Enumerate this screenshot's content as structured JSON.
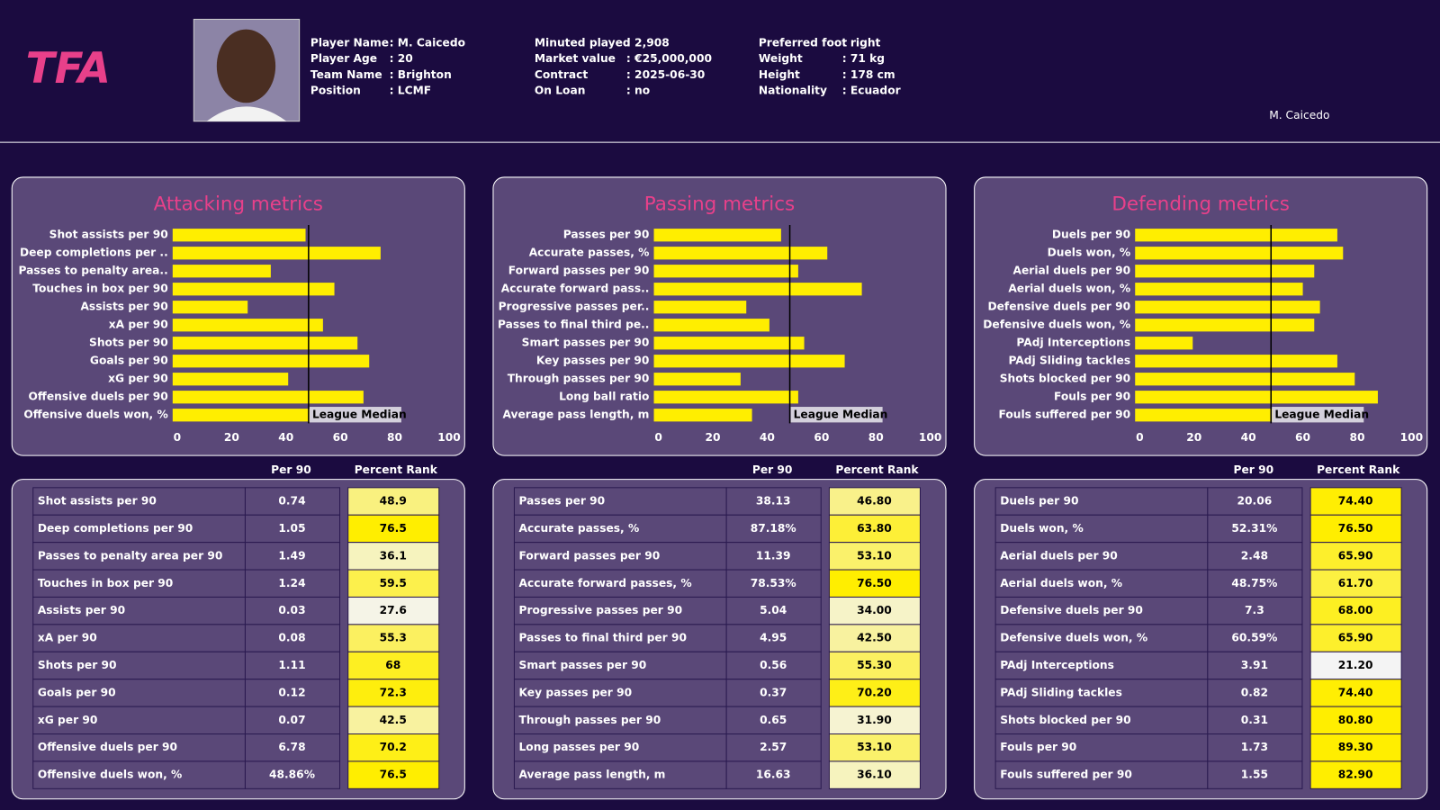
{
  "header": {
    "logo": "TFA",
    "caption": "M. Caicedo",
    "columns": [
      [
        {
          "label": "Player Name",
          "value": ": M. Caicedo"
        },
        {
          "label": "Player Age",
          "value": ": 20"
        },
        {
          "label": "Team Name",
          "value": ": Brighton"
        },
        {
          "label": "Position",
          "value": ": LCMF"
        }
      ],
      [
        {
          "label": "Minuted played",
          "value": ": 2,908"
        },
        {
          "label": "Market value",
          "value": ": €25,000,000"
        },
        {
          "label": "Contract",
          "value": ": 2025-06-30"
        },
        {
          "label": "On Loan",
          "value": ": no"
        }
      ],
      [
        {
          "label": "Preferred foot",
          "value": ": right"
        },
        {
          "label": "Weight",
          "value": ": 71 kg"
        },
        {
          "label": "Height",
          "value": ": 178 cm"
        },
        {
          "label": "Nationality",
          "value": ": Ecuador"
        }
      ]
    ]
  },
  "chart_data": [
    {
      "type": "barh",
      "title": "Attacking metrics",
      "color": "#ffee00",
      "xlim": [
        0,
        100
      ],
      "xticks": [
        0,
        20,
        40,
        60,
        80,
        100
      ],
      "median": {
        "value": 50,
        "label": "League Median"
      },
      "categories": [
        "Shot assists per 90",
        "Deep completions per ..",
        "Passes to penalty area..",
        "Touches in box per 90",
        "Assists per 90",
        "xA per 90",
        "Shots per 90",
        "Goals per 90",
        "xG per 90",
        "Offensive duels per 90",
        "Offensive duels won, %"
      ],
      "values": [
        48.9,
        76.5,
        36.1,
        59.5,
        27.6,
        55.3,
        68,
        72.3,
        42.5,
        70.2,
        76.5
      ]
    },
    {
      "type": "barh",
      "title": "Passing metrics",
      "color": "#ffee00",
      "xlim": [
        0,
        100
      ],
      "xticks": [
        0,
        20,
        40,
        60,
        80,
        100
      ],
      "median": {
        "value": 50,
        "label": "League Median"
      },
      "categories": [
        "Passes per 90",
        "Accurate passes, %",
        "Forward passes per 90",
        "Accurate forward pass..",
        "Progressive passes per..",
        "Passes to final third pe..",
        "Smart passes per 90",
        "Key passes per 90",
        "Through passes per 90",
        "Long ball ratio",
        "Average pass length, m"
      ],
      "values": [
        46.8,
        63.8,
        53.1,
        76.5,
        34,
        42.5,
        55.3,
        70.2,
        31.9,
        53.1,
        36.1
      ]
    },
    {
      "type": "barh",
      "title": "Defending metrics",
      "color": "#ffee00",
      "xlim": [
        0,
        100
      ],
      "xticks": [
        0,
        20,
        40,
        60,
        80,
        100
      ],
      "median": {
        "value": 50,
        "label": "League Median"
      },
      "categories": [
        "Duels per 90",
        "Duels won, %",
        "Aerial duels per 90",
        "Aerial duels won, %",
        "Defensive duels per 90",
        "Defensive duels won, %",
        "PAdj Interceptions",
        "PAdj Sliding tackles",
        "Shots blocked per 90",
        "Fouls per 90",
        "Fouls suffered per 90"
      ],
      "values": [
        74.4,
        76.5,
        65.9,
        61.7,
        68,
        65.9,
        21.2,
        74.4,
        80.8,
        89.3,
        82.9
      ]
    }
  ],
  "tables": [
    {
      "headers": [
        "Per 90",
        "Percent Rank"
      ],
      "rows": [
        [
          "Shot assists per 90",
          "0.74",
          "48.9"
        ],
        [
          "Deep completions per 90",
          "1.05",
          "76.5"
        ],
        [
          "Passes to penalty area per 90",
          "1.49",
          "36.1"
        ],
        [
          "Touches in box per 90",
          "1.24",
          "59.5"
        ],
        [
          "Assists per 90",
          "0.03",
          "27.6"
        ],
        [
          "xA per 90",
          "0.08",
          "55.3"
        ],
        [
          "Shots per 90",
          "1.11",
          "68"
        ],
        [
          "Goals per 90",
          "0.12",
          "72.3"
        ],
        [
          "xG per 90",
          "0.07",
          "42.5"
        ],
        [
          "Offensive duels per 90",
          "6.78",
          "70.2"
        ],
        [
          "Offensive duels won, %",
          "48.86%",
          "76.5"
        ]
      ]
    },
    {
      "headers": [
        "Per 90",
        "Percent Rank"
      ],
      "rows": [
        [
          "Passes per 90",
          "38.13",
          "46.80"
        ],
        [
          "Accurate passes, %",
          "87.18%",
          "63.80"
        ],
        [
          "Forward passes per 90",
          "11.39",
          "53.10"
        ],
        [
          "Accurate forward passes, %",
          "78.53%",
          "76.50"
        ],
        [
          "Progressive passes per 90",
          "5.04",
          "34.00"
        ],
        [
          "Passes to final third per 90",
          "4.95",
          "42.50"
        ],
        [
          "Smart passes per 90",
          "0.56",
          "55.30"
        ],
        [
          "Key passes per 90",
          "0.37",
          "70.20"
        ],
        [
          "Through passes per 90",
          "0.65",
          "31.90"
        ],
        [
          "Long passes per 90",
          "2.57",
          "53.10"
        ],
        [
          "Average pass length, m",
          "16.63",
          "36.10"
        ]
      ]
    },
    {
      "headers": [
        "Per 90",
        "Percent Rank"
      ],
      "rows": [
        [
          "Duels per 90",
          "20.06",
          "74.40"
        ],
        [
          "Duels won, %",
          "52.31%",
          "76.50"
        ],
        [
          "Aerial duels per 90",
          "2.48",
          "65.90"
        ],
        [
          "Aerial duels won, %",
          "48.75%",
          "61.70"
        ],
        [
          "Defensive duels per 90",
          "7.3",
          "68.00"
        ],
        [
          "Defensive duels won, %",
          "60.59%",
          "65.90"
        ],
        [
          "PAdj Interceptions",
          "3.91",
          "21.20"
        ],
        [
          "PAdj Sliding tackles",
          "0.82",
          "74.40"
        ],
        [
          "Shots blocked per 90",
          "0.31",
          "80.80"
        ],
        [
          "Fouls per 90",
          "1.73",
          "89.30"
        ],
        [
          "Fouls suffered per 90",
          "1.55",
          "82.90"
        ]
      ]
    }
  ]
}
